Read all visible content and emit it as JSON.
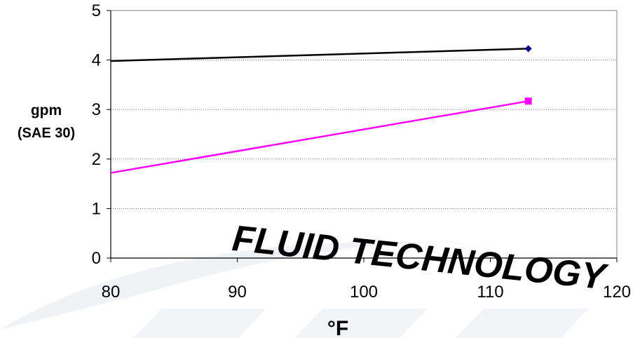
{
  "chart_data": {
    "type": "line",
    "title": "",
    "xlabel": "°F",
    "ylabel_line1": "gpm",
    "ylabel_line2": "(SAE 30)",
    "xlim": [
      80,
      120
    ],
    "ylim": [
      0,
      5
    ],
    "x_ticks": [
      80,
      90,
      100,
      110,
      120
    ],
    "y_ticks": [
      0,
      1,
      2,
      3,
      4,
      5
    ],
    "grid": "horizontal dotted",
    "legend": "none",
    "series": [
      {
        "color": "#000000",
        "marker": "diamond",
        "marker_color": "#000080",
        "x": [
          80,
          113
        ],
        "y": [
          3.98,
          4.23
        ]
      },
      {
        "color": "#ff00ff",
        "marker": "square",
        "marker_color": "#ff00ff",
        "x": [
          80,
          113
        ],
        "y": [
          1.72,
          3.17
        ]
      }
    ]
  },
  "watermark": {
    "text": "FLUID TECHNOLOGY",
    "color": "#eef0f4"
  }
}
